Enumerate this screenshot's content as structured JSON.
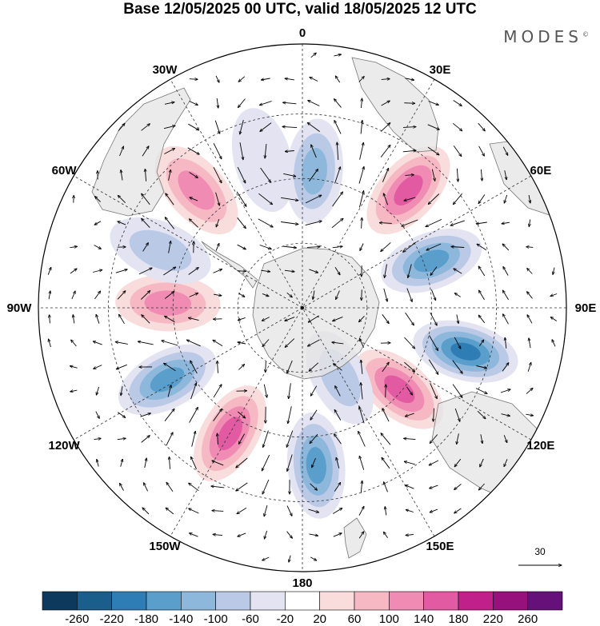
{
  "title": "Base 12/05/2025 00 UTC, valid 18/05/2025 12 UTC",
  "brand": "MODES",
  "brand_mark": "©",
  "map": {
    "projection": "south-polar-stereographic",
    "meridian_labels": [
      {
        "text": "0",
        "lon": 0
      },
      {
        "text": "30E",
        "lon": 30
      },
      {
        "text": "60E",
        "lon": 60
      },
      {
        "text": "90E",
        "lon": 90
      },
      {
        "text": "120E",
        "lon": 120
      },
      {
        "text": "150E",
        "lon": 150
      },
      {
        "text": "180",
        "lon": 180
      },
      {
        "text": "150W",
        "lon": -150
      },
      {
        "text": "120W",
        "lon": -120
      },
      {
        "text": "90W",
        "lon": -90
      },
      {
        "text": "60W",
        "lon": -60
      },
      {
        "text": "30W",
        "lon": -30
      }
    ],
    "grid": true,
    "colors": {
      "land": "#e6e6e6",
      "coast": "#777777",
      "grid": "#333333",
      "vector": "#000000"
    }
  },
  "anomaly_centers": [
    {
      "sign": "negative",
      "lon": 5,
      "r": 0.52,
      "level": 3
    },
    {
      "sign": "positive",
      "lon": 42,
      "r": 0.6,
      "level": 4
    },
    {
      "sign": "negative",
      "lon": 70,
      "r": 0.52,
      "level": 4
    },
    {
      "sign": "negative",
      "lon": 105,
      "r": 0.64,
      "level": 5
    },
    {
      "sign": "positive",
      "lon": 130,
      "r": 0.48,
      "level": 4
    },
    {
      "sign": "negative",
      "lon": 152,
      "r": 0.3,
      "level": 2
    },
    {
      "sign": "negative",
      "lon": 175,
      "r": 0.6,
      "level": 4
    },
    {
      "sign": "positive",
      "lon": -150,
      "r": 0.55,
      "level": 4
    },
    {
      "sign": "negative",
      "lon": -118,
      "r": 0.58,
      "level": 4
    },
    {
      "sign": "positive",
      "lon": -88,
      "r": 0.51,
      "level": 3
    },
    {
      "sign": "negative",
      "lon": -68,
      "r": 0.58,
      "level": 2
    },
    {
      "sign": "positive",
      "lon": -42,
      "r": 0.6,
      "level": 3
    },
    {
      "sign": "negative",
      "lon": -15,
      "r": 0.58,
      "level": 1
    }
  ],
  "vector_reference": {
    "label": "30",
    "magnitude": 30
  },
  "colorbar": {
    "colors": [
      "#0d3a5c",
      "#1a5e8c",
      "#2f7db5",
      "#5a9fcc",
      "#8db8db",
      "#b9c9e6",
      "#e3e3f1",
      "#ffffff",
      "#f9dcdc",
      "#f6b9c4",
      "#f08cb3",
      "#e25aa2",
      "#c0208a",
      "#96117c",
      "#66107a"
    ],
    "ticks": [
      "-260",
      "-220",
      "-180",
      "-140",
      "-100",
      "-60",
      "-20",
      "20",
      "60",
      "100",
      "140",
      "180",
      "220",
      "260"
    ]
  }
}
